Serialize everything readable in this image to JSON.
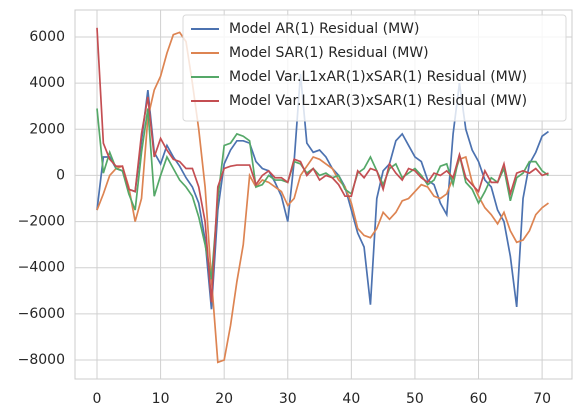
{
  "chart_data": {
    "type": "line",
    "x": [
      0,
      1,
      2,
      3,
      4,
      5,
      6,
      7,
      8,
      9,
      10,
      11,
      12,
      13,
      14,
      15,
      16,
      17,
      18,
      19,
      20,
      21,
      22,
      23,
      24,
      25,
      26,
      27,
      28,
      29,
      30,
      31,
      32,
      33,
      34,
      35,
      36,
      37,
      38,
      39,
      40,
      41,
      42,
      43,
      44,
      45,
      46,
      47,
      48,
      49,
      50,
      51,
      52,
      53,
      54,
      55,
      56,
      57,
      58,
      59,
      60,
      61,
      62,
      63,
      64,
      65,
      66,
      67,
      68,
      69,
      70,
      71
    ],
    "series": [
      {
        "name": "Model AR(1) Residual (MW)",
        "color": "#4c72b0",
        "values": [
          -1500,
          800,
          800,
          300,
          200,
          -600,
          -700,
          1500,
          3700,
          1000,
          500,
          1300,
          800,
          400,
          -100,
          -500,
          -1200,
          -2800,
          -5800,
          -1500,
          500,
          1100,
          1500,
          1500,
          1400,
          600,
          300,
          200,
          -300,
          -900,
          -2000,
          600,
          4400,
          1400,
          1000,
          1100,
          800,
          300,
          0,
          -500,
          -1500,
          -2500,
          -3100,
          -5600,
          -1000,
          200,
          500,
          1500,
          1800,
          1300,
          800,
          600,
          -200,
          -400,
          -1200,
          -1700,
          1800,
          4000,
          2000,
          1100,
          600,
          -200,
          -500,
          -1500,
          -2000,
          -3500,
          -5700,
          -1000,
          500,
          1000,
          1700,
          1900
        ]
      },
      {
        "name": "Model SAR(1) Residual (MW)",
        "color": "#dd8452",
        "values": [
          -1500,
          -800,
          0,
          300,
          400,
          -500,
          -2000,
          -1000,
          2500,
          3700,
          4300,
          5300,
          6100,
          6200,
          5800,
          4000,
          2000,
          -500,
          -4500,
          -8100,
          -8000,
          -6500,
          -4600,
          -3000,
          0,
          -500,
          -200,
          -300,
          -500,
          -700,
          -1300,
          -1000,
          0,
          400,
          800,
          700,
          500,
          300,
          -200,
          -500,
          -1200,
          -2300,
          -2600,
          -2700,
          -2300,
          -1600,
          -1900,
          -1600,
          -1100,
          -1000,
          -700,
          -400,
          -500,
          -900,
          -1000,
          -800,
          -100,
          700,
          800,
          -300,
          -900,
          -1400,
          -1700,
          -2100,
          -1600,
          -2400,
          -2900,
          -2800,
          -2400,
          -1700,
          -1400,
          -1200
        ]
      },
      {
        "name": "Model Var.L1xAR(1)xSAR(1) Residual (MW)",
        "color": "#55a868",
        "values": [
          2900,
          100,
          1000,
          300,
          200,
          -800,
          -1500,
          1000,
          2900,
          -900,
          0,
          800,
          300,
          -200,
          -500,
          -900,
          -1800,
          -3000,
          -4500,
          -1000,
          1300,
          1400,
          1800,
          1700,
          1500,
          -500,
          -400,
          0,
          -200,
          -200,
          -300,
          600,
          500,
          100,
          300,
          0,
          100,
          -100,
          0,
          -600,
          -800,
          100,
          300,
          800,
          200,
          -400,
          300,
          500,
          -100,
          100,
          300,
          0,
          -400,
          -200,
          400,
          500,
          -400,
          900,
          -300,
          -600,
          -1200,
          -700,
          -100,
          -300,
          300,
          -1100,
          -100,
          100,
          600,
          600,
          200,
          0
        ]
      },
      {
        "name": "Model Var.L1xAR(3)xSAR(1) Residual (MW)",
        "color": "#c44e52",
        "values": [
          6400,
          1400,
          700,
          400,
          400,
          -600,
          -700,
          1800,
          3400,
          800,
          1600,
          1100,
          700,
          600,
          300,
          300,
          -500,
          -2000,
          -5500,
          -500,
          300,
          400,
          450,
          450,
          450,
          -400,
          0,
          200,
          -100,
          -100,
          -300,
          700,
          600,
          0,
          300,
          -200,
          0,
          -100,
          -400,
          -900,
          -900,
          200,
          -100,
          300,
          200,
          -600,
          500,
          100,
          -200,
          300,
          200,
          -100,
          -300,
          100,
          0,
          200,
          -100,
          900,
          -100,
          -400,
          -700,
          200,
          -300,
          -300,
          500,
          -800,
          100,
          200,
          100,
          300,
          0,
          100
        ]
      }
    ],
    "xlim": [
      -3.46,
      74.7
    ],
    "xticks": [
      0,
      10,
      20,
      30,
      40,
      50,
      60,
      70
    ],
    "ylim": [
      -8823,
      7170
    ],
    "yticks": [
      {
        "value": -8000,
        "label": "−8000"
      },
      {
        "value": -6000,
        "label": "−6000"
      },
      {
        "value": -4000,
        "label": "−4000"
      },
      {
        "value": -2000,
        "label": "−2000"
      },
      0,
      2000,
      4000,
      6000
    ],
    "grid": true,
    "legend": "upper right"
  }
}
